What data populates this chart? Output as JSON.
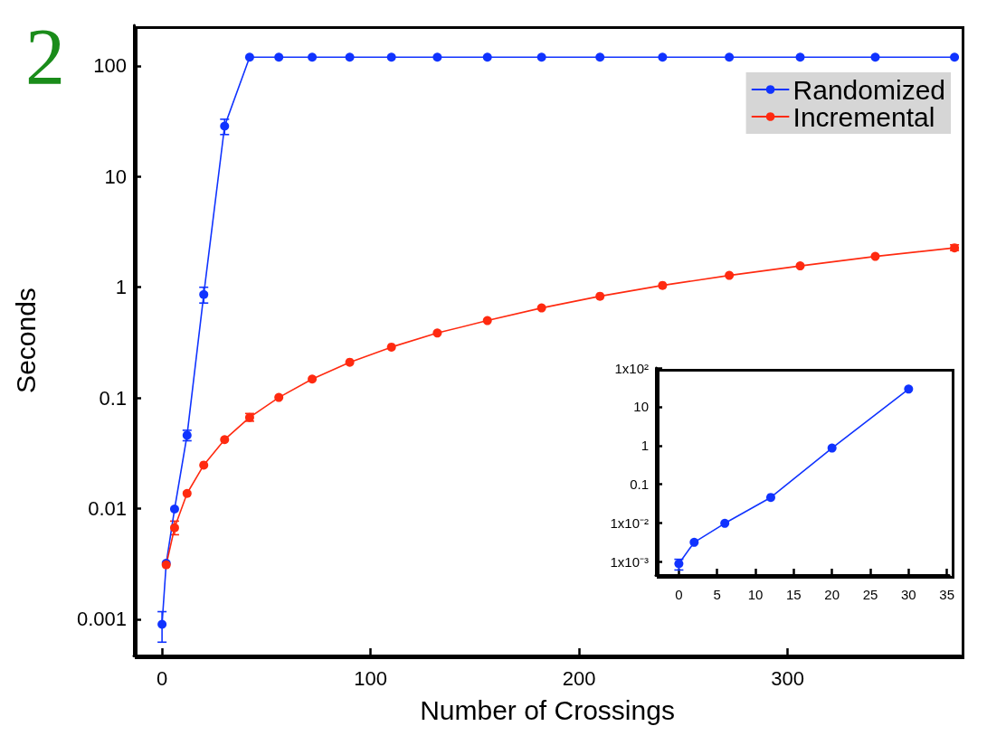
{
  "chart_data": [
    {
      "type": "line",
      "xlabel": "Number of Crossings",
      "ylabel": "Seconds",
      "annotations": [
        "2"
      ],
      "log": "y",
      "xlim": [
        -13.5,
        383
      ],
      "xticks": [
        0,
        100,
        200,
        300
      ],
      "ylim": [
        0.00047,
        233
      ],
      "yticks": [
        0.001,
        0.01,
        0.1,
        1,
        10,
        100
      ],
      "grid": false,
      "legend": "top right",
      "marker": "circle",
      "line_style": "solid",
      "series": [
        {
          "name": "Randomized",
          "color": "#1033ff",
          "x": [
            0,
            2,
            6,
            12,
            20,
            30,
            42,
            56,
            72,
            90,
            110,
            132,
            156,
            182,
            210,
            240,
            272,
            306,
            342,
            380
          ],
          "values": [
            0.0009,
            0.0032,
            0.0099,
            0.046,
            0.86,
            28.6,
            120,
            120,
            120,
            120,
            120,
            120,
            120,
            120,
            120,
            120,
            120,
            120,
            120,
            120
          ],
          "errors": [
            [
              0.00062,
              0.00117
            ],
            null,
            null,
            [
              0.041,
              0.051
            ],
            [
              0.72,
              1.0
            ],
            [
              24,
              33
            ],
            null,
            null,
            null,
            null,
            null,
            null,
            null,
            null,
            null,
            null,
            null,
            null,
            null,
            null
          ]
        },
        {
          "name": "Incremental",
          "color": "#ff2a10",
          "x": [
            2,
            6,
            12,
            20,
            30,
            42,
            56,
            72,
            90,
            110,
            132,
            156,
            182,
            210,
            240,
            272,
            306,
            342,
            380
          ],
          "values": [
            0.0031,
            0.0067,
            0.0137,
            0.0247,
            0.042,
            0.0666,
            0.101,
            0.148,
            0.21,
            0.288,
            0.386,
            0.5,
            0.65,
            0.83,
            1.04,
            1.28,
            1.56,
            1.9,
            2.27
          ],
          "errors": [
            null,
            [
              0.0058,
              0.0077
            ],
            null,
            null,
            null,
            [
              0.0616,
              0.0723
            ],
            null,
            null,
            null,
            null,
            null,
            null,
            null,
            null,
            null,
            null,
            null,
            null,
            [
              2.15,
              2.42
            ]
          ]
        }
      ]
    },
    {
      "type": "line",
      "log": "y",
      "xlim": [
        -3,
        35.3
      ],
      "xticks": [
        0,
        5,
        10,
        15,
        20,
        25,
        30,
        35
      ],
      "ylim": [
        0.00046,
        100
      ],
      "yticks": [
        {
          "value": 0.001,
          "label": "1x10⁻³"
        },
        {
          "value": 0.01,
          "label": "1x10⁻²"
        },
        0.1,
        1,
        10,
        {
          "value": 100,
          "label": "1x10²"
        }
      ],
      "grid": false,
      "marker": "circle",
      "line_style": "solid",
      "series": [
        {
          "color": "#1033ff",
          "x": [
            0,
            2,
            6,
            12,
            20,
            30
          ],
          "values": [
            0.0009,
            0.0032,
            0.0099,
            0.046,
            0.86,
            28.6
          ],
          "errors": [
            [
              0.00062,
              0.00117
            ],
            null,
            null,
            null,
            null,
            null
          ]
        }
      ]
    }
  ]
}
